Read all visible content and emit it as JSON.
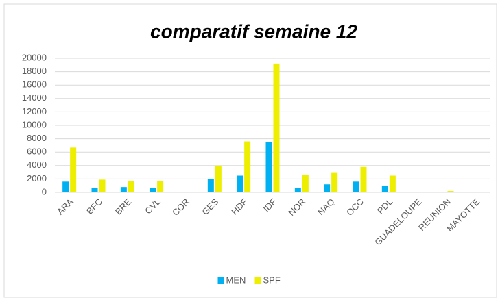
{
  "chart_data": {
    "type": "bar",
    "title": "comparatif semaine 12",
    "categories": [
      "ARA",
      "BFC",
      "BRE",
      "CVL",
      "COR",
      "GES",
      "HDF",
      "IDF",
      "NOR",
      "NAQ",
      "OCC",
      "PDL",
      "GUADELOUPE",
      "REUNION",
      "MAYOTTE"
    ],
    "series": [
      {
        "name": "MEN",
        "color": "#00b0f0",
        "values": [
          1600,
          700,
          800,
          700,
          0,
          2000,
          2500,
          7500,
          700,
          1200,
          1600,
          1000,
          0,
          0,
          0
        ]
      },
      {
        "name": "SPF",
        "color": "#eeee00",
        "values": [
          6700,
          1900,
          1700,
          1700,
          0,
          4000,
          7600,
          19200,
          2600,
          3000,
          3800,
          2500,
          0,
          200,
          0
        ]
      }
    ],
    "ylim": [
      0,
      20000
    ],
    "yticks": [
      0,
      2000,
      4000,
      6000,
      8000,
      10000,
      12000,
      14000,
      16000,
      18000,
      20000
    ],
    "grid": true,
    "legend": "bottom"
  }
}
